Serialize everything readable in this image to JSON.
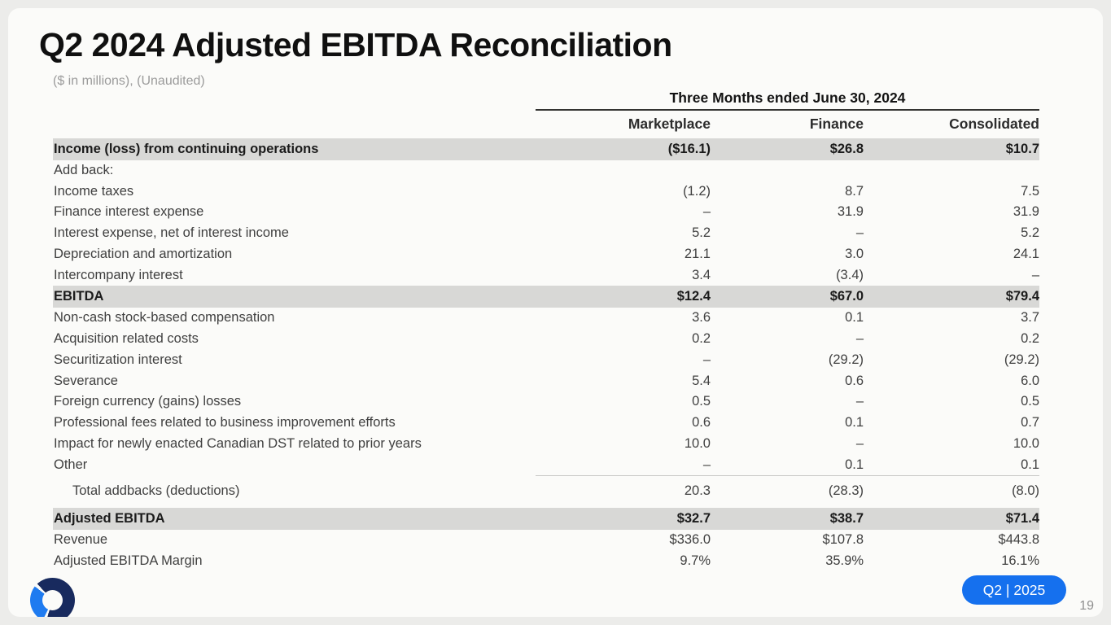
{
  "slide": {
    "title": "Q2 2024 Adjusted EBITDA Reconciliation",
    "subtitle": "($ in millions), (Unaudited)",
    "badge": "Q2 | 2025",
    "page_number": "19"
  },
  "colors": {
    "badge_blue": "#1570ee",
    "logo_navy": "#182a5e",
    "logo_blue": "#1f7bf0",
    "highlight_row_gray": "#d8d8d6",
    "slide_background": "#fbfbf9"
  },
  "table": {
    "period_header": "Three Months ended June 30, 2024",
    "columns": [
      "Marketplace",
      "Finance",
      "Consolidated"
    ],
    "rows": [
      {
        "label": "Income (loss) from continuing operations",
        "values": [
          "($16.1)",
          "$26.8",
          "$10.7"
        ],
        "style": "highlight"
      },
      {
        "label": "Add back:",
        "values": [
          "",
          "",
          ""
        ],
        "style": "plain"
      },
      {
        "label": "Income taxes",
        "values": [
          "(1.2)",
          "8.7",
          "7.5"
        ],
        "style": "plain"
      },
      {
        "label": "Finance interest expense",
        "values": [
          "–",
          "31.9",
          "31.9"
        ],
        "style": "plain"
      },
      {
        "label": "Interest expense, net of interest income",
        "values": [
          "5.2",
          "–",
          "5.2"
        ],
        "style": "plain"
      },
      {
        "label": "Depreciation and amortization",
        "values": [
          "21.1",
          "3.0",
          "24.1"
        ],
        "style": "plain"
      },
      {
        "label": "Intercompany interest",
        "values": [
          "3.4",
          "(3.4)",
          "–"
        ],
        "style": "plain"
      },
      {
        "label": "EBITDA",
        "values": [
          "$12.4",
          "$67.0",
          "$79.4"
        ],
        "style": "highlight"
      },
      {
        "label": "Non-cash stock-based compensation",
        "values": [
          "3.6",
          "0.1",
          "3.7"
        ],
        "style": "plain"
      },
      {
        "label": "Acquisition related costs",
        "values": [
          "0.2",
          "–",
          "0.2"
        ],
        "style": "plain"
      },
      {
        "label": "Securitization interest",
        "values": [
          "–",
          "(29.2)",
          "(29.2)"
        ],
        "style": "plain"
      },
      {
        "label": "Severance",
        "values": [
          "5.4",
          "0.6",
          "6.0"
        ],
        "style": "plain"
      },
      {
        "label": "Foreign currency (gains) losses",
        "values": [
          "0.5",
          "–",
          "0.5"
        ],
        "style": "plain"
      },
      {
        "label": "Professional fees related to business improvement efforts",
        "values": [
          "0.6",
          "0.1",
          "0.7"
        ],
        "style": "plain"
      },
      {
        "label": "Impact for newly enacted Canadian DST related to prior years",
        "values": [
          "10.0",
          "–",
          "10.0"
        ],
        "style": "plain"
      },
      {
        "label": "Other",
        "values": [
          "–",
          "0.1",
          "0.1"
        ],
        "style": "plain"
      },
      {
        "label": "Total addbacks (deductions)",
        "values": [
          "20.3",
          "(28.3)",
          "(8.0)"
        ],
        "style": "total"
      },
      {
        "label": "Adjusted EBITDA",
        "values": [
          "$32.7",
          "$38.7",
          "$71.4"
        ],
        "style": "highlight"
      },
      {
        "label": "Revenue",
        "values": [
          "$336.0",
          "$107.8",
          "$443.8"
        ],
        "style": "plain"
      },
      {
        "label": "Adjusted EBITDA Margin",
        "values": [
          "9.7%",
          "35.9%",
          "16.1%"
        ],
        "style": "plain"
      }
    ]
  }
}
